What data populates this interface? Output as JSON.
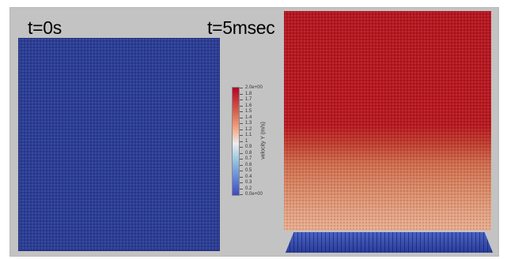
{
  "labels": {
    "left_time": "t=0s",
    "right_time": "t=5msec"
  },
  "colorbar": {
    "title": "velocity Y (m/s)",
    "ticks": [
      "2.0e+00",
      "1.8",
      "1.7",
      "1.6",
      "1.5",
      "1.4",
      "1.3",
      "1.2",
      "1.1",
      "1",
      "0.9",
      "0.8",
      "0.7",
      "0.6",
      "0.5",
      "0.4",
      "0.3",
      "0.2",
      "0.0e+00"
    ],
    "colormap_colors": [
      "#b40426",
      "#d6604d",
      "#f4a582",
      "#ededed",
      "#9ecae1",
      "#6a8fd8",
      "#3b4cc0"
    ]
  },
  "colors": {
    "frame_background": "#c3c3c3",
    "left_panel": "#2b3c93",
    "right_panel_top": "#b4141d",
    "right_panel_bottom": "#e8ad8e",
    "base_plate": "#2f46a8"
  }
}
